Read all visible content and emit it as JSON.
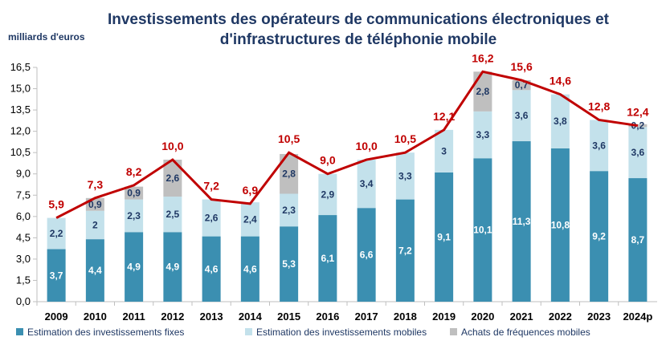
{
  "chart_data": {
    "type": "bar",
    "stacked": true,
    "title_line1": "Investissements des opérateurs de communications électroniques et",
    "title_line2": "d'infrastructures de téléphonie mobile",
    "ylabel": "milliards d'euros",
    "ylim": [
      0,
      16.5
    ],
    "yticks": [
      "0,0",
      "1,5",
      "3,0",
      "4,5",
      "6,0",
      "7,5",
      "9,0",
      "10,5",
      "12,0",
      "13,5",
      "15,0",
      "16,5"
    ],
    "categories": [
      "2009",
      "2010",
      "2011",
      "2012",
      "2013",
      "2014",
      "2015",
      "2016",
      "2017",
      "2018",
      "2019",
      "2020",
      "2021",
      "2022",
      "2023",
      "2024p"
    ],
    "series": [
      {
        "name": "Estimation des investissements fixes",
        "color": "#3b8fb1",
        "values": [
          3.7,
          4.4,
          4.9,
          4.9,
          4.6,
          4.6,
          5.3,
          6.1,
          6.6,
          7.2,
          9.1,
          10.1,
          11.3,
          10.8,
          9.2,
          8.7
        ]
      },
      {
        "name": "Estimation des investissements mobiles",
        "color": "#c3e1eb",
        "values": [
          2.2,
          2.0,
          2.3,
          2.5,
          2.6,
          2.4,
          2.3,
          2.9,
          3.4,
          3.3,
          3.0,
          3.3,
          3.6,
          3.8,
          3.6,
          3.6
        ]
      },
      {
        "name": "Achats de fréquences mobiles",
        "color": "#bfbfbf",
        "values": [
          0,
          0.9,
          0.9,
          2.6,
          0,
          0,
          2.8,
          0,
          0,
          0,
          0,
          2.8,
          0.7,
          0,
          0,
          0.2
        ]
      }
    ],
    "total": {
      "type": "line",
      "color": "#c00000",
      "values": [
        5.9,
        7.3,
        8.2,
        10.0,
        7.2,
        6.9,
        10.5,
        9.0,
        10.0,
        10.5,
        12.1,
        16.2,
        15.6,
        14.6,
        12.8,
        12.4
      ]
    },
    "legend_position": "bottom",
    "grid": false
  }
}
